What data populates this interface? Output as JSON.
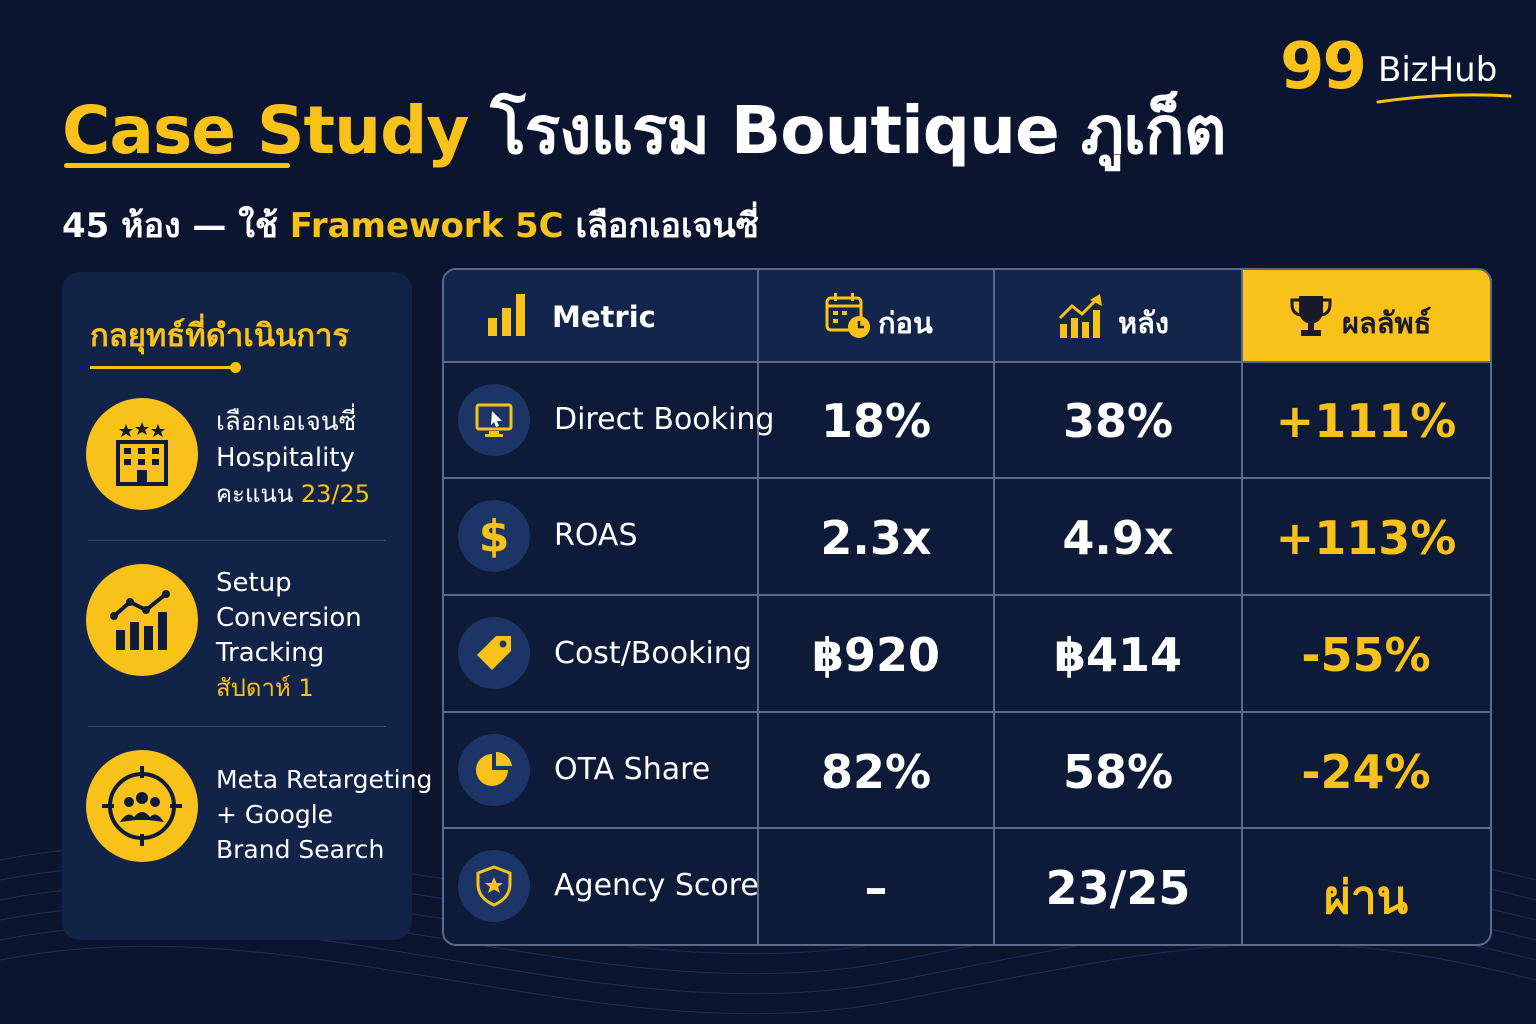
{
  "header": {
    "title_accent": "Case Study",
    "title_rest": "โรงแรม Boutique ภูเก็ต",
    "subtitle_pre": "45 ห้อง — ใช้",
    "subtitle_accent": "Framework 5C",
    "subtitle_post": "เลือกเอเจนซี่"
  },
  "logo": {
    "mark": "99",
    "name": "BizHub"
  },
  "sidebar": {
    "heading": "กลยุทธ์ที่ดำเนินการ",
    "items": [
      {
        "icon": "hotel-building-icon",
        "line1": "เลือกเอเจนซี่",
        "line2": "Hospitality",
        "line3_pre": "คะแนน ",
        "line3_accent": "23/25"
      },
      {
        "icon": "growth-chart-icon",
        "line1": "Setup",
        "line2": "Conversion",
        "line3": "Tracking",
        "line4_accent": "สัปดาห์ 1"
      },
      {
        "icon": "target-audience-icon",
        "line1": "Meta Retargeting",
        "line2": "+ Google",
        "line3": "Brand Search"
      }
    ]
  },
  "table": {
    "headers": {
      "metric": "Metric",
      "before": "ก่อน",
      "after": "หลัง",
      "result": "ผลลัพธ์"
    },
    "header_icons": {
      "metric": "bar-chart-icon",
      "before": "calendar-clock-icon",
      "after": "trend-up-icon",
      "result": "trophy-icon"
    },
    "rows": [
      {
        "icon": "monitor-click-icon",
        "metric": "Direct Booking",
        "before": "18%",
        "after": "38%",
        "result": "+111%"
      },
      {
        "icon": "dollar-icon",
        "metric": "ROAS",
        "before": "2.3x",
        "after": "4.9x",
        "result": "+113%"
      },
      {
        "icon": "price-tag-icon",
        "metric": "Cost/Booking",
        "before": "฿920",
        "after": "฿414",
        "result": "-55%"
      },
      {
        "icon": "pie-chart-icon",
        "metric": "OTA Share",
        "before": "82%",
        "after": "58%",
        "result": "-24%"
      },
      {
        "icon": "shield-star-icon",
        "metric": "Agency Score",
        "before": "–",
        "after": "23/25",
        "result": "ผ่าน"
      }
    ]
  },
  "colors": {
    "background": "#0b1530",
    "accent": "#f8c21a",
    "panel": "#112448"
  }
}
